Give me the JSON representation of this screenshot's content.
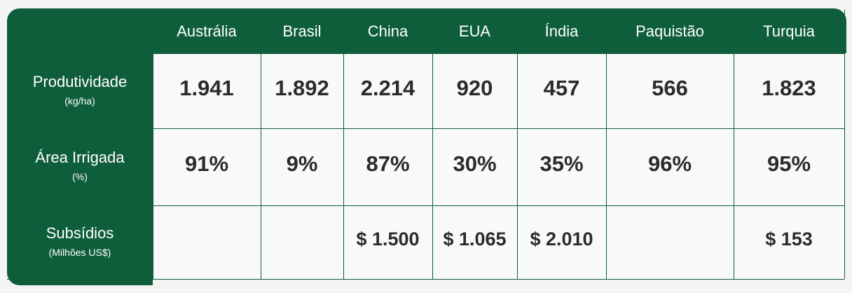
{
  "table": {
    "columns": [
      "Austrália",
      "Brasil",
      "China",
      "EUA",
      "Índia",
      "Paquistão",
      "Turquia"
    ],
    "rows": [
      {
        "label": "Produtividade",
        "unit": "(kg/ha)",
        "cells": [
          "1.941",
          "1.892",
          "2.214",
          "920",
          "457",
          "566",
          "1.823"
        ]
      },
      {
        "label": "Área Irrigada",
        "unit": "(%)",
        "cells": [
          "91%",
          "9%",
          "87%",
          "30%",
          "35%",
          "96%",
          "95%"
        ]
      },
      {
        "label": "Subsídios",
        "unit": "(Milhões US$)",
        "cells": [
          null,
          null,
          "$ 1.500",
          "$ 1.065",
          "$ 2.010",
          null,
          "$ 153"
        ]
      }
    ]
  }
}
